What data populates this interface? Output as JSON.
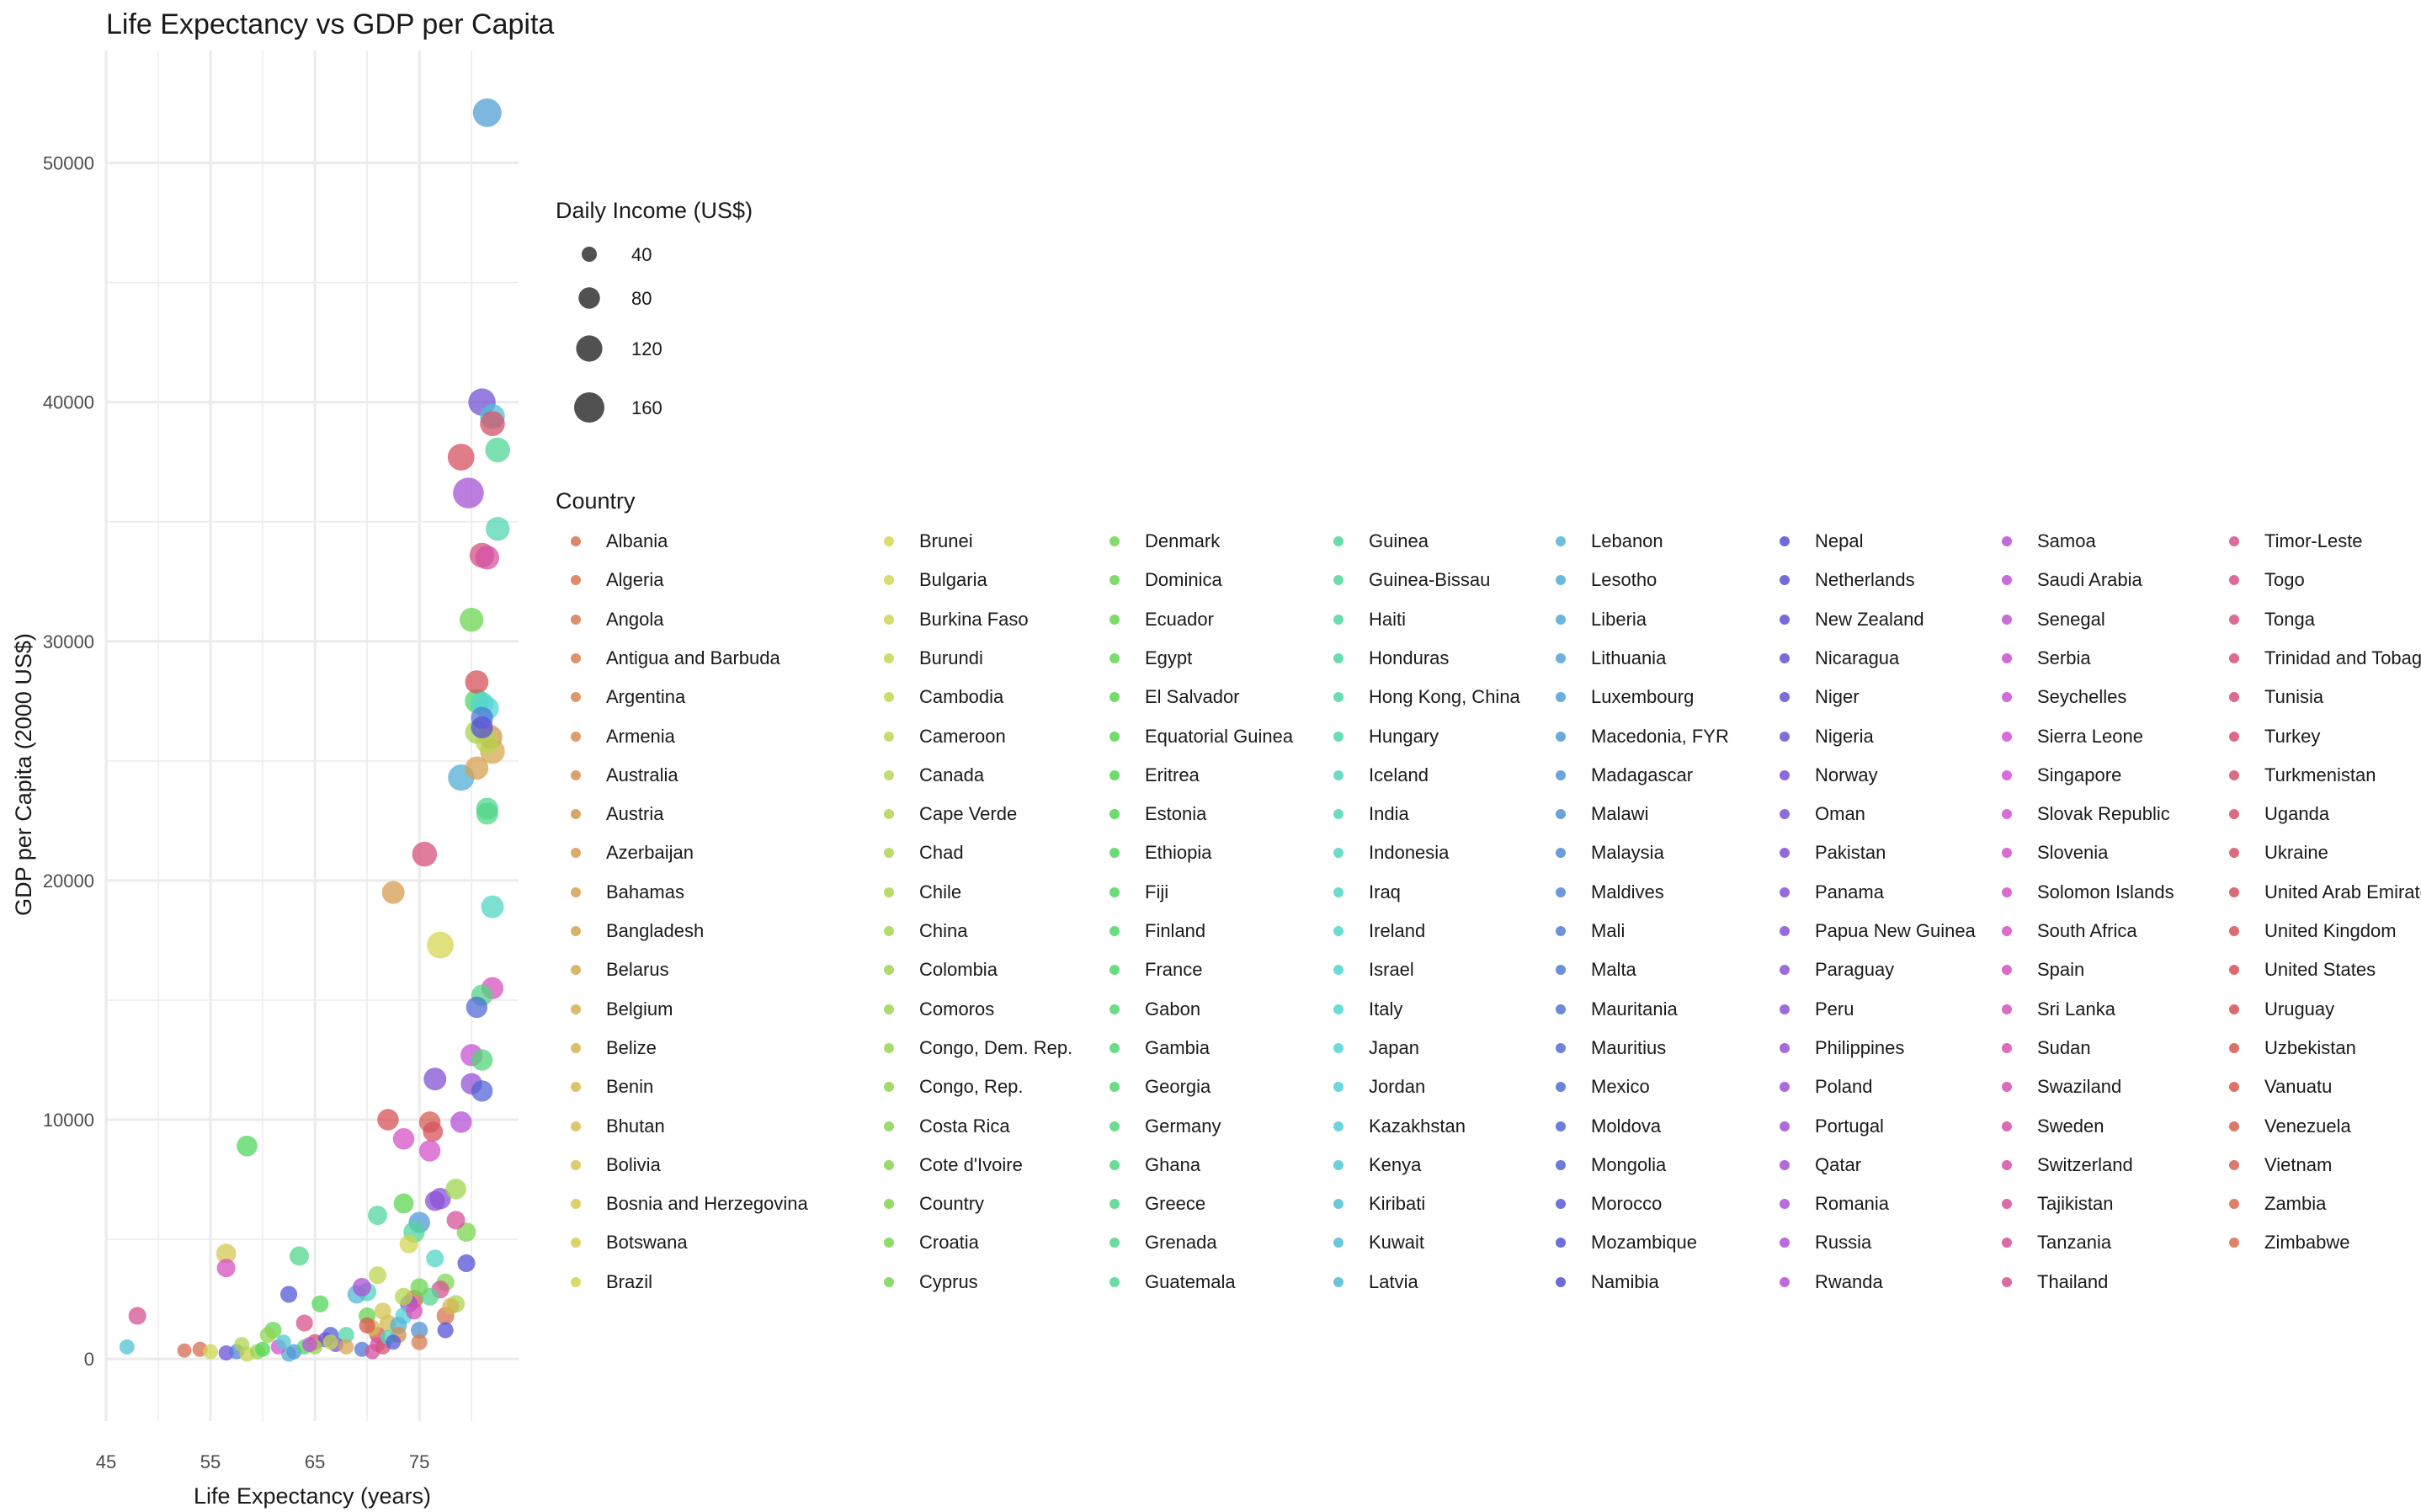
{
  "chart_data": {
    "type": "scatter",
    "title": "Life Expectancy vs GDP per Capita",
    "xlabel": "Life Expectancy (years)",
    "ylabel": "GDP per Capita (2000 US$)",
    "xlim": [
      45,
      84.5
    ],
    "ylim": [
      -2600,
      54700
    ],
    "x_ticks": [
      45,
      55,
      65,
      75
    ],
    "x_tick_labels": [
      "45",
      "55",
      "65",
      "75"
    ],
    "y_ticks": [
      0,
      10000,
      20000,
      30000,
      40000,
      50000
    ],
    "y_tick_labels": [
      "0",
      "10000",
      "20000",
      "30000",
      "40000",
      "50000"
    ],
    "grid": true,
    "size_legend": {
      "title": "Daily Income (US$)",
      "values": [
        40,
        80,
        120,
        160
      ],
      "labels": [
        "40",
        "80",
        "120",
        "160"
      ]
    },
    "color_legend_title": "Country",
    "countries": [
      "Albania",
      "Algeria",
      "Angola",
      "Antigua and Barbuda",
      "Argentina",
      "Armenia",
      "Australia",
      "Austria",
      "Azerbaijan",
      "Bahamas",
      "Bangladesh",
      "Belarus",
      "Belgium",
      "Belize",
      "Benin",
      "Bhutan",
      "Bolivia",
      "Bosnia and Herzegovina",
      "Botswana",
      "Brazil",
      "Brunei",
      "Bulgaria",
      "Burkina Faso",
      "Burundi",
      "Cambodia",
      "Cameroon",
      "Canada",
      "Cape Verde",
      "Chad",
      "Chile",
      "China",
      "Colombia",
      "Comoros",
      "Congo, Dem. Rep.",
      "Congo, Rep.",
      "Costa Rica",
      "Cote d'Ivoire",
      "Country",
      "Croatia",
      "Cyprus",
      "Denmark",
      "Dominica",
      "Ecuador",
      "Egypt",
      "El Salvador",
      "Equatorial Guinea",
      "Eritrea",
      "Estonia",
      "Ethiopia",
      "Fiji",
      "Finland",
      "France",
      "Gabon",
      "Gambia",
      "Georgia",
      "Germany",
      "Ghana",
      "Greece",
      "Grenada",
      "Guatemala",
      "Guinea",
      "Guinea-Bissau",
      "Haiti",
      "Honduras",
      "Hong Kong, China",
      "Hungary",
      "Iceland",
      "India",
      "Indonesia",
      "Iraq",
      "Ireland",
      "Israel",
      "Italy",
      "Japan",
      "Jordan",
      "Kazakhstan",
      "Kenya",
      "Kiribati",
      "Kuwait",
      "Latvia",
      "Lebanon",
      "Lesotho",
      "Liberia",
      "Lithuania",
      "Luxembourg",
      "Macedonia, FYR",
      "Madagascar",
      "Malawi",
      "Malaysia",
      "Maldives",
      "Mali",
      "Malta",
      "Mauritania",
      "Mauritius",
      "Mexico",
      "Moldova",
      "Mongolia",
      "Morocco",
      "Mozambique",
      "Namibia",
      "Nepal",
      "Netherlands",
      "New Zealand",
      "Nicaragua",
      "Niger",
      "Nigeria",
      "Norway",
      "Oman",
      "Pakistan",
      "Panama",
      "Papua New Guinea",
      "Paraguay",
      "Peru",
      "Philippines",
      "Poland",
      "Portugal",
      "Qatar",
      "Romania",
      "Russia",
      "Rwanda",
      "Samoa",
      "Saudi Arabia",
      "Senegal",
      "Serbia",
      "Seychelles",
      "Sierra Leone",
      "Singapore",
      "Slovak Republic",
      "Slovenia",
      "Solomon Islands",
      "South Africa",
      "Spain",
      "Sri Lanka",
      "Sudan",
      "Swaziland",
      "Sweden",
      "Switzerland",
      "Tajikistan",
      "Tanzania",
      "Thailand",
      "Timor-Leste",
      "Togo",
      "Tonga",
      "Trinidad and Tobago",
      "Tunisia",
      "Turkey",
      "Turkmenistan",
      "Uganda",
      "Ukraine",
      "United Arab Emirates",
      "United Kingdom",
      "United States",
      "Uruguay",
      "Uzbekistan",
      "Vanuatu",
      "Venezuela",
      "Vietnam",
      "Zambia",
      "Zimbabwe"
    ],
    "points": [
      {
        "country": "Luxembourg",
        "x": 81.5,
        "y": 52100,
        "size": 143
      },
      {
        "country": "Norway",
        "x": 81.0,
        "y": 40000,
        "size": 130
      },
      {
        "country": "Kuwait",
        "x": 82.0,
        "y": 39400,
        "size": 108
      },
      {
        "country": "Ukraine",
        "x": 82.0,
        "y": 39100,
        "size": 108
      },
      {
        "country": "Guinea",
        "x": 82.5,
        "y": 38000,
        "size": 108
      },
      {
        "country": "United Arab Emirates",
        "x": 79.0,
        "y": 37700,
        "size": 125
      },
      {
        "country": "Qatar",
        "x": 79.7,
        "y": 36200,
        "size": 165
      },
      {
        "country": "Iceland",
        "x": 82.5,
        "y": 34700,
        "size": 100
      },
      {
        "country": "Trinidad and Tobago",
        "x": 81.0,
        "y": 33600,
        "size": 108
      },
      {
        "country": "Switzerland",
        "x": 81.5,
        "y": 33500,
        "size": 100
      },
      {
        "country": "Dominica",
        "x": 80.0,
        "y": 30900,
        "size": 100
      },
      {
        "country": "United States",
        "x": 80.5,
        "y": 28300,
        "size": 95
      },
      {
        "country": "France",
        "x": 80.5,
        "y": 27500,
        "size": 100
      },
      {
        "country": "Ireland",
        "x": 81.0,
        "y": 27400,
        "size": 95
      },
      {
        "country": "Japan",
        "x": 81.5,
        "y": 27200,
        "size": 95
      },
      {
        "country": "Malta",
        "x": 81.0,
        "y": 26800,
        "size": 85
      },
      {
        "country": "Netherlands",
        "x": 81.0,
        "y": 26400,
        "size": 85
      },
      {
        "country": "China",
        "x": 80.5,
        "y": 26200,
        "size": 95
      },
      {
        "country": "Austria",
        "x": 81.8,
        "y": 26000,
        "size": 100
      },
      {
        "country": "Belarus",
        "x": 82.0,
        "y": 25400,
        "size": 108
      },
      {
        "country": "Canada",
        "x": 81.5,
        "y": 25800,
        "size": 95
      },
      {
        "country": "Bahamas",
        "x": 80.5,
        "y": 24700,
        "size": 95
      },
      {
        "country": "Lesotho",
        "x": 79.0,
        "y": 24300,
        "size": 120
      },
      {
        "country": "Guatemala",
        "x": 81.5,
        "y": 23000,
        "size": 85
      },
      {
        "country": "Greece",
        "x": 81.5,
        "y": 22800,
        "size": 85
      },
      {
        "country": "Tunisia",
        "x": 75.5,
        "y": 21100,
        "size": 108
      },
      {
        "country": "Azerbaijan",
        "x": 72.5,
        "y": 19500,
        "size": 90
      },
      {
        "country": "Iraq",
        "x": 82.0,
        "y": 18900,
        "size": 90
      },
      {
        "country": "Brunei",
        "x": 77.0,
        "y": 17300,
        "size": 125
      },
      {
        "country": "Spain",
        "x": 82.0,
        "y": 15500,
        "size": 85
      },
      {
        "country": "Ghana",
        "x": 81.0,
        "y": 15200,
        "size": 80
      },
      {
        "country": "Mexico",
        "x": 80.5,
        "y": 14700,
        "size": 80
      },
      {
        "country": "Serbia",
        "x": 80.0,
        "y": 12700,
        "size": 85
      },
      {
        "country": "Georgia",
        "x": 81.0,
        "y": 12500,
        "size": 80
      },
      {
        "country": "Panama",
        "x": 76.5,
        "y": 11700,
        "size": 90
      },
      {
        "country": "Philippines",
        "x": 80.0,
        "y": 11500,
        "size": 80
      },
      {
        "country": "Moldova",
        "x": 81.0,
        "y": 11200,
        "size": 80
      },
      {
        "country": "Uruguay",
        "x": 72.0,
        "y": 10000,
        "size": 80
      },
      {
        "country": "Venezuela",
        "x": 76.0,
        "y": 9900,
        "size": 80
      },
      {
        "country": "Rwanda",
        "x": 79.0,
        "y": 9900,
        "size": 80
      },
      {
        "country": "United Kingdom",
        "x": 76.3,
        "y": 9500,
        "size": 70
      },
      {
        "country": "Solomon Islands",
        "x": 73.5,
        "y": 9200,
        "size": 80
      },
      {
        "country": "Slovenia",
        "x": 76.0,
        "y": 8700,
        "size": 80
      },
      {
        "country": "Fiji",
        "x": 58.5,
        "y": 8900,
        "size": 75
      },
      {
        "country": "Colombia",
        "x": 78.5,
        "y": 7100,
        "size": 75
      },
      {
        "country": "Papua New Guinea",
        "x": 77.0,
        "y": 6700,
        "size": 80
      },
      {
        "country": "Paraguay",
        "x": 76.5,
        "y": 6600,
        "size": 70
      },
      {
        "country": "El Salvador",
        "x": 73.5,
        "y": 6500,
        "size": 70
      },
      {
        "country": "Haiti",
        "x": 71.0,
        "y": 6000,
        "size": 65
      },
      {
        "country": "Tanzania",
        "x": 78.5,
        "y": 5800,
        "size": 60
      },
      {
        "country": "Macedonia, FYR",
        "x": 75.0,
        "y": 5700,
        "size": 80
      },
      {
        "country": "Guinea-Bissau",
        "x": 74.5,
        "y": 5300,
        "size": 80
      },
      {
        "country": "Croatia",
        "x": 79.5,
        "y": 5300,
        "size": 65
      },
      {
        "country": "Bosnia and Herzegovina",
        "x": 56.5,
        "y": 4400,
        "size": 70
      },
      {
        "country": "Grenada",
        "x": 63.5,
        "y": 4300,
        "size": 65
      },
      {
        "country": "Bulgaria",
        "x": 74.0,
        "y": 4800,
        "size": 60
      },
      {
        "country": "Namibia",
        "x": 79.5,
        "y": 4000,
        "size": 55
      },
      {
        "country": "South Africa",
        "x": 56.5,
        "y": 3800,
        "size": 60
      },
      {
        "country": "Cameroon",
        "x": 71.0,
        "y": 3500,
        "size": 55
      },
      {
        "country": "Country",
        "x": 77.5,
        "y": 3200,
        "size": 55
      },
      {
        "country": "Thailand",
        "x": 77.0,
        "y": 2900,
        "size": 55
      },
      {
        "country": "Indonesia",
        "x": 70.0,
        "y": 2800,
        "size": 60
      },
      {
        "country": "Latvia",
        "x": 69.0,
        "y": 2700,
        "size": 60
      },
      {
        "country": "Mozambique",
        "x": 62.5,
        "y": 2700,
        "size": 50
      },
      {
        "country": "Russia",
        "x": 69.5,
        "y": 3000,
        "size": 60
      },
      {
        "country": "Vietnam",
        "x": 74.5,
        "y": 2500,
        "size": 60
      },
      {
        "country": "Chile",
        "x": 78.5,
        "y": 2300,
        "size": 55
      },
      {
        "country": "Ethiopia",
        "x": 65.5,
        "y": 2300,
        "size": 50
      },
      {
        "country": "Timor-Leste",
        "x": 48.0,
        "y": 1800,
        "size": 55
      },
      {
        "country": "Togo",
        "x": 64.0,
        "y": 1500,
        "size": 50
      },
      {
        "country": "Albania",
        "x": 77.5,
        "y": 1800,
        "size": 55
      },
      {
        "country": "Benin",
        "x": 72.0,
        "y": 1500,
        "size": 50
      },
      {
        "country": "Malawi",
        "x": 75.0,
        "y": 1200,
        "size": 50
      },
      {
        "country": "Ecuador",
        "x": 61.0,
        "y": 1200,
        "size": 50
      },
      {
        "country": "Nepal",
        "x": 77.5,
        "y": 1200,
        "size": 45
      },
      {
        "country": "Uzbekistan",
        "x": 71.0,
        "y": 1000,
        "size": 45
      },
      {
        "country": "Honduras",
        "x": 68.0,
        "y": 1000,
        "size": 45
      },
      {
        "country": "Angola",
        "x": 75.0,
        "y": 700,
        "size": 45
      },
      {
        "country": "Zambia",
        "x": 52.5,
        "y": 350,
        "size": 35
      },
      {
        "country": "Kiribati",
        "x": 47.0,
        "y": 500,
        "size": 40
      },
      {
        "country": "Zimbabwe",
        "x": 54.0,
        "y": 400,
        "size": 40
      },
      {
        "country": "Burkina Faso",
        "x": 55.0,
        "y": 300,
        "size": 40
      },
      {
        "country": "Niger",
        "x": 56.5,
        "y": 250,
        "size": 40
      },
      {
        "country": "Mali",
        "x": 57.5,
        "y": 300,
        "size": 40
      },
      {
        "country": "Burundi",
        "x": 58.5,
        "y": 200,
        "size": 40
      },
      {
        "country": "Congo, Dem. Rep.",
        "x": 59.5,
        "y": 300,
        "size": 40
      },
      {
        "country": "Eritrea",
        "x": 60.0,
        "y": 400,
        "size": 40
      },
      {
        "country": "Liberia",
        "x": 62.5,
        "y": 200,
        "size": 40
      },
      {
        "country": "Madagascar",
        "x": 63.0,
        "y": 300,
        "size": 40
      },
      {
        "country": "Sierra Leone",
        "x": 61.5,
        "y": 500,
        "size": 40
      },
      {
        "country": "Chad",
        "x": 58.0,
        "y": 600,
        "size": 40
      },
      {
        "country": "Gambia",
        "x": 64.0,
        "y": 500,
        "size": 40
      },
      {
        "country": "Kenya",
        "x": 62.0,
        "y": 700,
        "size": 40
      },
      {
        "country": "Nigeria",
        "x": 66.0,
        "y": 800,
        "size": 40
      },
      {
        "country": "Mauritania",
        "x": 69.5,
        "y": 400,
        "size": 40
      },
      {
        "country": "Tajikistan",
        "x": 70.5,
        "y": 300,
        "size": 40
      },
      {
        "country": "Pakistan",
        "x": 67.0,
        "y": 600,
        "size": 40
      },
      {
        "country": "Bangladesh",
        "x": 68.0,
        "y": 500,
        "size": 40
      },
      {
        "country": "Comoros",
        "x": 65.0,
        "y": 500,
        "size": 40
      },
      {
        "country": "Cambodia",
        "x": 66.5,
        "y": 700,
        "size": 40
      },
      {
        "country": "Senegal",
        "x": 64.5,
        "y": 600,
        "size": 40
      },
      {
        "country": "Sudan",
        "x": 71.0,
        "y": 600,
        "size": 40
      },
      {
        "country": "Uganda",
        "x": 71.5,
        "y": 500,
        "size": 40
      },
      {
        "country": "India",
        "x": 72.0,
        "y": 900,
        "size": 40
      },
      {
        "country": "Morocco",
        "x": 72.5,
        "y": 700,
        "size": 40
      },
      {
        "country": "Armenia",
        "x": 73.0,
        "y": 1000,
        "size": 45
      },
      {
        "country": "Bhutan",
        "x": 70.5,
        "y": 1300,
        "size": 45
      },
      {
        "country": "Bolivia",
        "x": 71.5,
        "y": 2000,
        "size": 50
      },
      {
        "country": "Belize",
        "x": 78.0,
        "y": 2200,
        "size": 50
      },
      {
        "country": "Egypt",
        "x": 70.0,
        "y": 1800,
        "size": 50
      },
      {
        "country": "Jordan",
        "x": 73.5,
        "y": 1800,
        "size": 50
      },
      {
        "country": "Lebanon",
        "x": 73.0,
        "y": 1400,
        "size": 50
      },
      {
        "country": "Mongolia",
        "x": 66.5,
        "y": 1000,
        "size": 45
      },
      {
        "country": "Sri Lanka",
        "x": 74.5,
        "y": 2000,
        "size": 50
      },
      {
        "country": "Peru",
        "x": 74.0,
        "y": 2300,
        "size": 55
      },
      {
        "country": "Turkmenistan",
        "x": 65.0,
        "y": 700,
        "size": 45
      },
      {
        "country": "Vanuatu",
        "x": 70.0,
        "y": 1400,
        "size": 45
      },
      {
        "country": "Congo, Rep.",
        "x": 60.5,
        "y": 1000,
        "size": 45
      },
      {
        "country": "Guatemala",
        "x": 76.0,
        "y": 2600,
        "size": 55
      },
      {
        "country": "Cape Verde",
        "x": 73.5,
        "y": 2600,
        "size": 55
      },
      {
        "country": "Dominica",
        "x": 75.0,
        "y": 3000,
        "size": 55
      },
      {
        "country": "Ireland",
        "x": 76.5,
        "y": 4200,
        "size": 55
      }
    ]
  },
  "palette": {
    "background": "#ffffff",
    "grid": "#ebebeb",
    "grid_minor": "#f4f4f4",
    "text": "#1a1a1a",
    "tick_text": "#4d4d4d",
    "size_legend_fill": "#333333"
  }
}
